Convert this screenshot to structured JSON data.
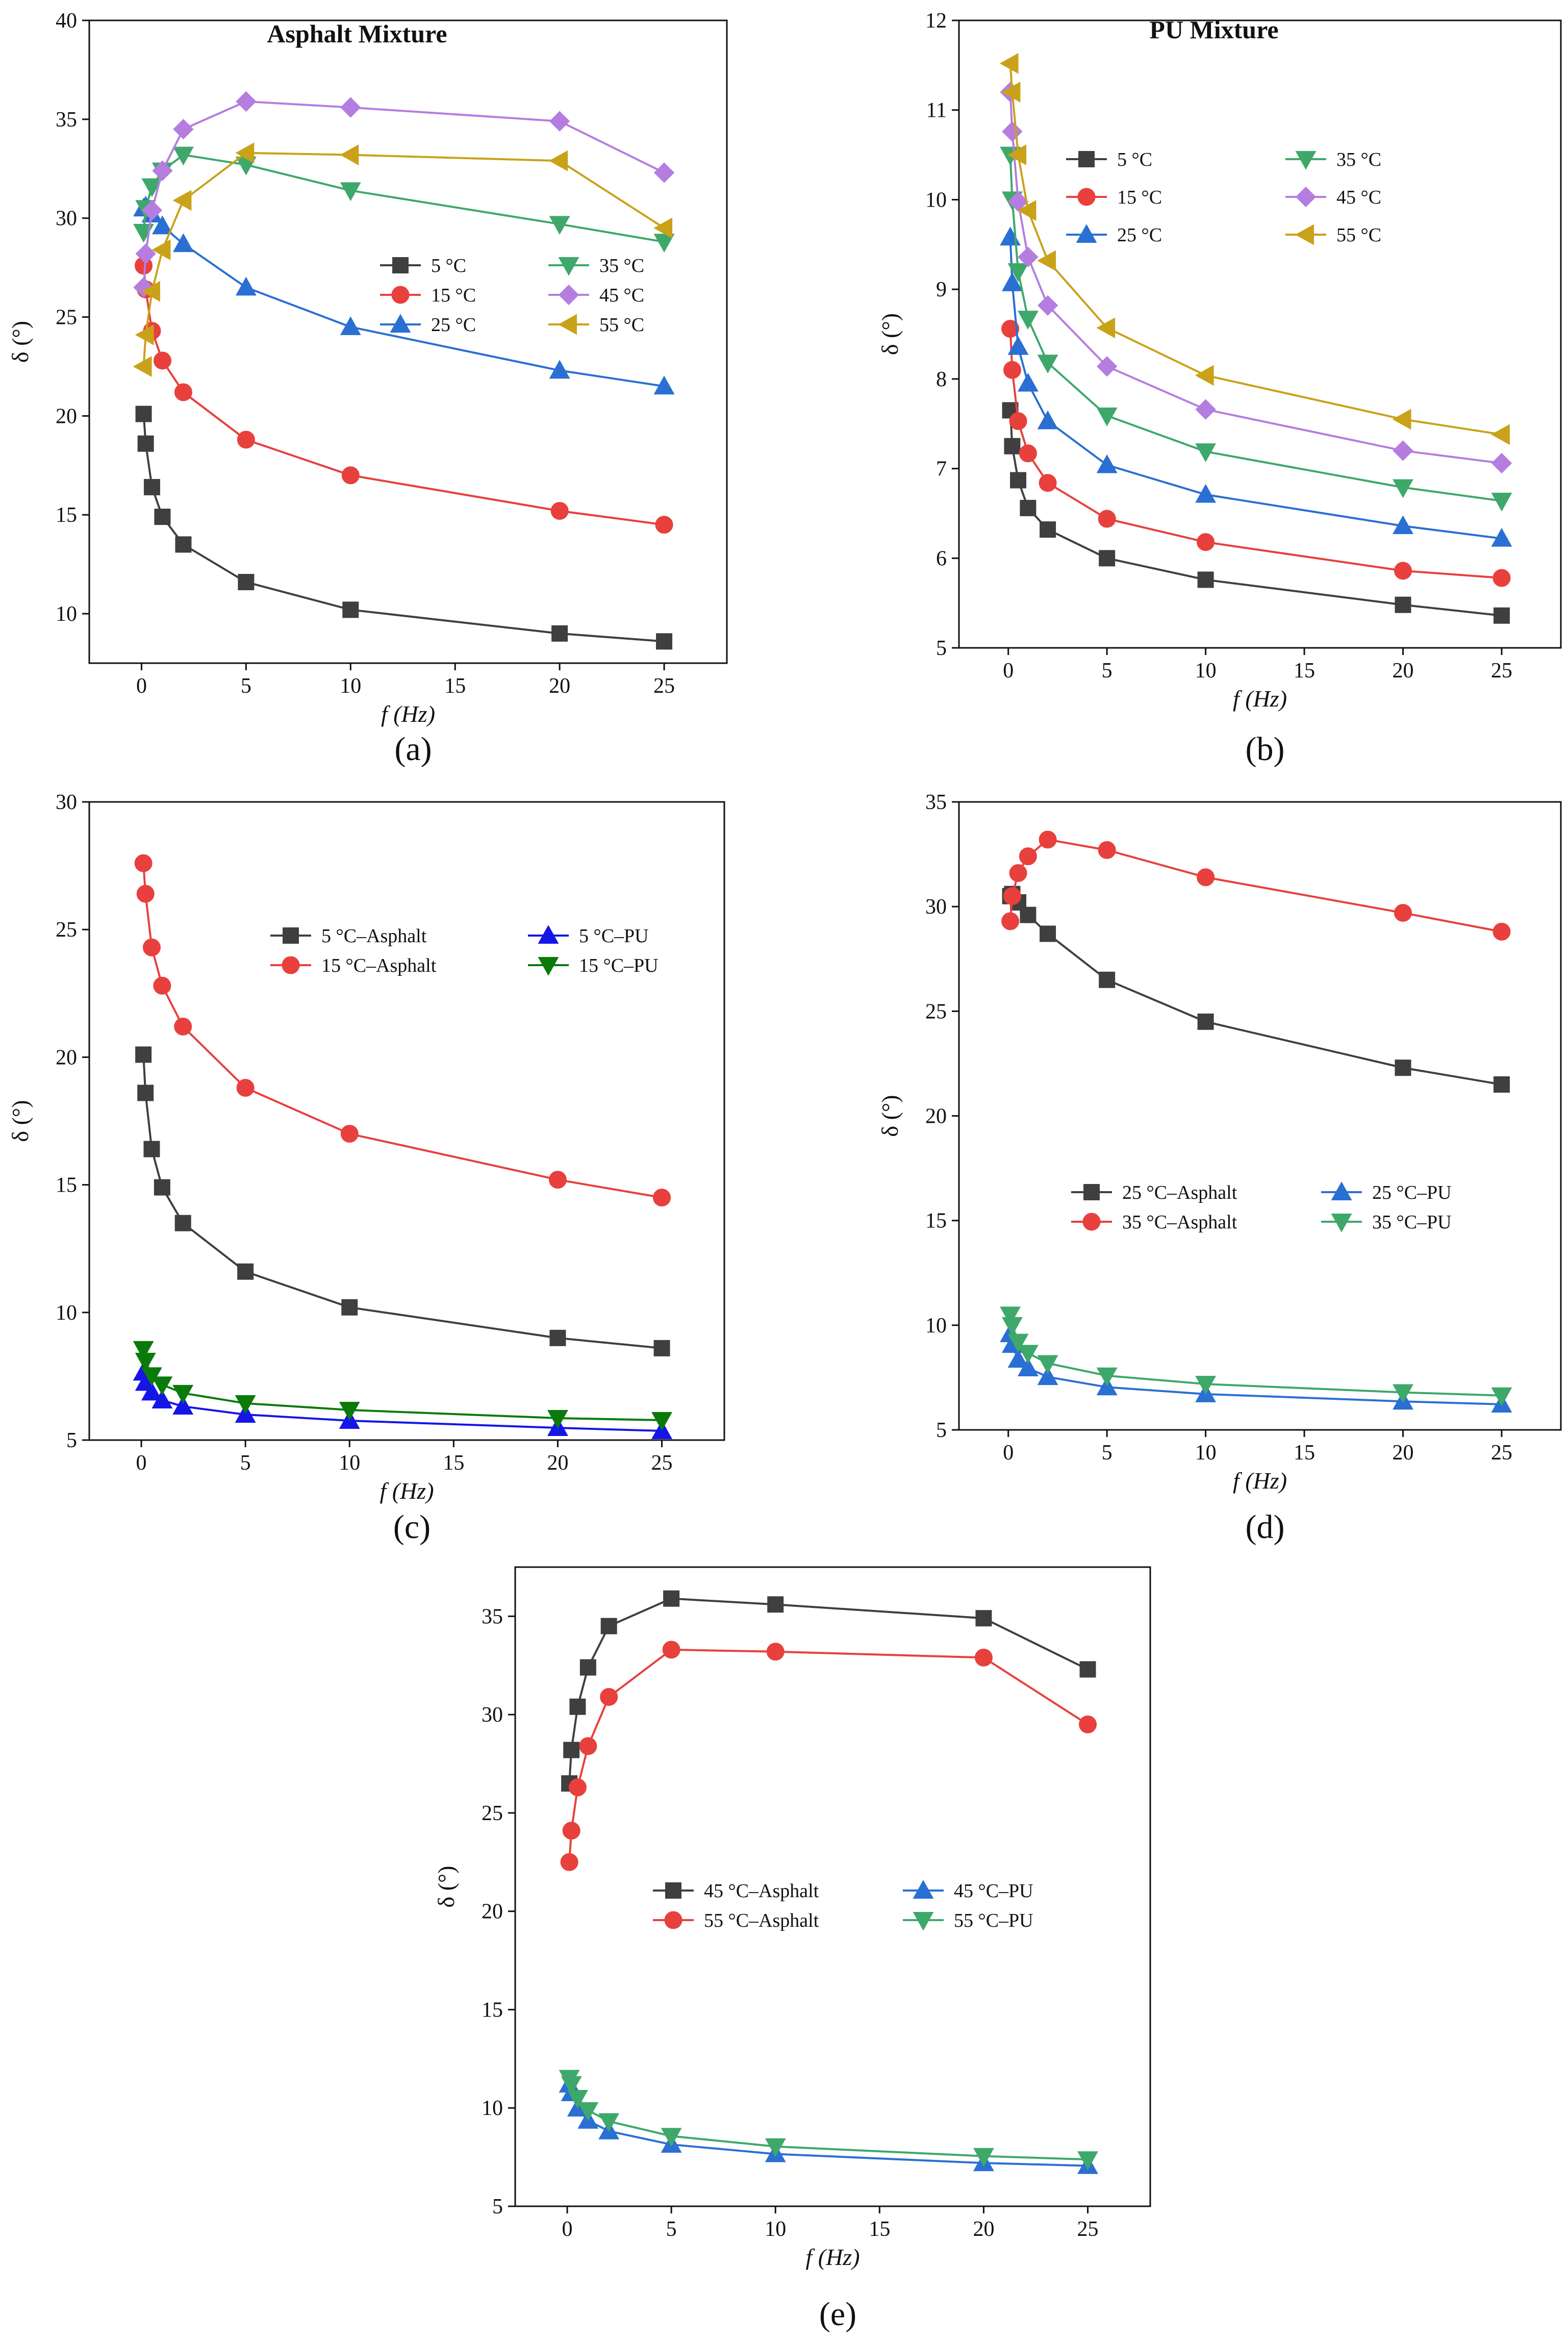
{
  "figure": {
    "captions": [
      "(a)",
      "(b)",
      "(c)",
      "(d)",
      "(e)"
    ]
  },
  "chart_data": [
    {
      "id": "a",
      "type": "line",
      "title": "Asphalt Mixture",
      "caption": "(a)",
      "xlabel": "f (Hz)",
      "ylabel": "δ (°)",
      "xlim": [
        -2.5,
        28
      ],
      "ylim": [
        7.5,
        40
      ],
      "xticks": [
        0,
        5,
        10,
        15,
        20,
        25
      ],
      "yticks": [
        10,
        15,
        20,
        25,
        30,
        35,
        40
      ],
      "legend_position": "center-right",
      "legend_columns": 2,
      "series": [
        {
          "name": "5 °C",
          "color": "#3f3f3f",
          "marker": "square",
          "x": [
            0.1,
            0.2,
            0.5,
            1,
            2,
            5,
            10,
            20,
            25
          ],
          "y": [
            20.1,
            18.6,
            16.4,
            14.9,
            13.5,
            11.6,
            10.2,
            9.0,
            8.6
          ]
        },
        {
          "name": "15 °C",
          "color": "#e8403d",
          "marker": "circle",
          "x": [
            0.1,
            0.2,
            0.5,
            1,
            2,
            5,
            10,
            20,
            25
          ],
          "y": [
            27.6,
            26.4,
            24.3,
            22.8,
            21.2,
            18.8,
            17.0,
            15.2,
            14.5
          ]
        },
        {
          "name": "25 °C",
          "color": "#2a6fd3",
          "marker": "triangle-up",
          "x": [
            0.1,
            0.2,
            0.5,
            1,
            2,
            5,
            10,
            20,
            25
          ],
          "y": [
            30.5,
            30.6,
            30.2,
            29.6,
            28.7,
            26.5,
            24.5,
            22.3,
            21.5
          ]
        },
        {
          "name": "35 °C",
          "color": "#3ea86a",
          "marker": "triangle-down",
          "x": [
            0.1,
            0.2,
            0.5,
            1,
            2,
            5,
            10,
            20,
            25
          ],
          "y": [
            29.3,
            30.5,
            31.6,
            32.4,
            33.2,
            32.7,
            31.4,
            29.7,
            28.8
          ]
        },
        {
          "name": "45 °C",
          "color": "#b57de0",
          "marker": "diamond",
          "x": [
            0.1,
            0.2,
            0.5,
            1,
            2,
            5,
            10,
            20,
            25
          ],
          "y": [
            26.5,
            28.2,
            30.4,
            32.4,
            34.5,
            35.9,
            35.6,
            34.9,
            32.3
          ]
        },
        {
          "name": "55 °C",
          "color": "#c9a21a",
          "marker": "triangle-left",
          "x": [
            0.1,
            0.2,
            0.5,
            1,
            2,
            5,
            10,
            20,
            25
          ],
          "y": [
            22.5,
            24.1,
            26.3,
            28.4,
            30.9,
            33.3,
            33.2,
            32.9,
            29.5
          ]
        }
      ]
    },
    {
      "id": "b",
      "type": "line",
      "title": "PU Mixture",
      "caption": "(b)",
      "xlabel": "f (Hz)",
      "ylabel": "δ (°)",
      "xlim": [
        -2.5,
        28
      ],
      "ylim": [
        5,
        12
      ],
      "xticks": [
        0,
        5,
        10,
        15,
        20,
        25
      ],
      "yticks": [
        5,
        6,
        7,
        8,
        9,
        10,
        11,
        12
      ],
      "legend_position": "top-right",
      "legend_columns": 2,
      "series": [
        {
          "name": "5 °C",
          "color": "#3f3f3f",
          "marker": "square",
          "x": [
            0.1,
            0.2,
            0.5,
            1,
            2,
            5,
            10,
            20,
            25
          ],
          "y": [
            7.65,
            7.25,
            6.87,
            6.56,
            6.32,
            6.0,
            5.76,
            5.48,
            5.36
          ]
        },
        {
          "name": "15 °C",
          "color": "#e8403d",
          "marker": "circle",
          "x": [
            0.1,
            0.2,
            0.5,
            1,
            2,
            5,
            10,
            20,
            25
          ],
          "y": [
            8.56,
            8.1,
            7.53,
            7.17,
            6.84,
            6.44,
            6.18,
            5.86,
            5.78
          ]
        },
        {
          "name": "25 °C",
          "color": "#2a6fd3",
          "marker": "triangle-up",
          "x": [
            0.1,
            0.2,
            0.5,
            1,
            2,
            5,
            10,
            20,
            25
          ],
          "y": [
            9.58,
            9.07,
            8.36,
            7.95,
            7.53,
            7.04,
            6.71,
            6.36,
            6.22
          ]
        },
        {
          "name": "35 °C",
          "color": "#3ea86a",
          "marker": "triangle-down",
          "x": [
            0.1,
            0.2,
            0.5,
            1,
            2,
            5,
            10,
            20,
            25
          ],
          "y": [
            10.5,
            10.0,
            9.2,
            8.67,
            8.18,
            7.59,
            7.19,
            6.79,
            6.64
          ]
        },
        {
          "name": "45 °C",
          "color": "#b57de0",
          "marker": "diamond",
          "x": [
            0.1,
            0.2,
            0.5,
            1,
            2,
            5,
            10,
            20,
            25
          ],
          "y": [
            11.2,
            10.76,
            9.98,
            9.36,
            8.82,
            8.14,
            7.66,
            7.2,
            7.06
          ]
        },
        {
          "name": "55 °C",
          "color": "#c9a21a",
          "marker": "triangle-left",
          "x": [
            0.1,
            0.2,
            0.5,
            1,
            2,
            5,
            10,
            20,
            25
          ],
          "y": [
            11.52,
            11.2,
            10.5,
            9.88,
            9.32,
            8.57,
            8.04,
            7.55,
            7.38
          ]
        }
      ]
    },
    {
      "id": "c",
      "type": "line",
      "title": "",
      "caption": "(c)",
      "xlabel": "f (Hz)",
      "ylabel": "δ (°)",
      "xlim": [
        -2.5,
        28
      ],
      "ylim": [
        5,
        30
      ],
      "xticks": [
        0,
        5,
        10,
        15,
        20,
        25
      ],
      "yticks": [
        5,
        10,
        15,
        20,
        25,
        30
      ],
      "legend_position": "top-center",
      "legend_columns": 2,
      "series": [
        {
          "name": "5 °C–Asphalt",
          "color": "#3f3f3f",
          "marker": "square",
          "x": [
            0.1,
            0.2,
            0.5,
            1,
            2,
            5,
            10,
            20,
            25
          ],
          "y": [
            20.1,
            18.6,
            16.4,
            14.9,
            13.5,
            11.6,
            10.2,
            9.0,
            8.6
          ]
        },
        {
          "name": "15 °C–Asphalt",
          "color": "#e8403d",
          "marker": "circle",
          "x": [
            0.1,
            0.2,
            0.5,
            1,
            2,
            5,
            10,
            20,
            25
          ],
          "y": [
            27.6,
            26.4,
            24.3,
            22.8,
            21.2,
            18.8,
            17.0,
            15.2,
            14.5
          ]
        },
        {
          "name": "5 °C–PU",
          "color": "#1515e8",
          "marker": "triangle-up",
          "x": [
            0.1,
            0.2,
            0.5,
            1,
            2,
            5,
            10,
            20,
            25
          ],
          "y": [
            7.65,
            7.25,
            6.87,
            6.56,
            6.32,
            6.0,
            5.76,
            5.48,
            5.36
          ]
        },
        {
          "name": "15 °C–PU",
          "color": "#0a7a0a",
          "marker": "triangle-down",
          "x": [
            0.1,
            0.2,
            0.5,
            1,
            2,
            5,
            10,
            20,
            25
          ],
          "y": [
            8.56,
            8.1,
            7.53,
            7.17,
            6.84,
            6.44,
            6.18,
            5.86,
            5.78
          ]
        }
      ]
    },
    {
      "id": "d",
      "type": "line",
      "title": "",
      "caption": "(d)",
      "xlabel": "f (Hz)",
      "ylabel": "δ (°)",
      "xlim": [
        -2.5,
        28
      ],
      "ylim": [
        5,
        35
      ],
      "xticks": [
        0,
        5,
        10,
        15,
        20,
        25
      ],
      "yticks": [
        5,
        10,
        15,
        20,
        25,
        30,
        35
      ],
      "legend_position": "center",
      "legend_columns": 2,
      "series": [
        {
          "name": "25 °C–Asphalt",
          "color": "#3f3f3f",
          "marker": "square",
          "x": [
            0.1,
            0.2,
            0.5,
            1,
            2,
            5,
            10,
            20,
            25
          ],
          "y": [
            30.5,
            30.6,
            30.2,
            29.6,
            28.7,
            26.5,
            24.5,
            22.3,
            21.5
          ]
        },
        {
          "name": "35 °C–Asphalt",
          "color": "#e8403d",
          "marker": "circle",
          "x": [
            0.1,
            0.2,
            0.5,
            1,
            2,
            5,
            10,
            20,
            25
          ],
          "y": [
            29.3,
            30.5,
            31.6,
            32.4,
            33.2,
            32.7,
            31.4,
            29.7,
            28.8
          ]
        },
        {
          "name": "25 °C–PU",
          "color": "#2a6fd3",
          "marker": "triangle-up",
          "x": [
            0.1,
            0.2,
            0.5,
            1,
            2,
            5,
            10,
            20,
            25
          ],
          "y": [
            9.58,
            9.07,
            8.36,
            7.95,
            7.53,
            7.04,
            6.71,
            6.36,
            6.22
          ]
        },
        {
          "name": "35 °C–PU",
          "color": "#3ea86a",
          "marker": "triangle-down",
          "x": [
            0.1,
            0.2,
            0.5,
            1,
            2,
            5,
            10,
            20,
            25
          ],
          "y": [
            10.5,
            10.0,
            9.2,
            8.67,
            8.18,
            7.59,
            7.19,
            6.79,
            6.64
          ]
        }
      ]
    },
    {
      "id": "e",
      "type": "line",
      "title": "",
      "caption": "(e)",
      "xlabel": "f (Hz)",
      "ylabel": "δ (°)",
      "xlim": [
        -2.5,
        28
      ],
      "ylim": [
        5,
        37.5
      ],
      "xticks": [
        0,
        5,
        10,
        15,
        20,
        25
      ],
      "yticks": [
        5,
        10,
        15,
        20,
        25,
        30,
        35
      ],
      "legend_position": "center",
      "legend_columns": 2,
      "series": [
        {
          "name": "45 °C–Asphalt",
          "color": "#3f3f3f",
          "marker": "square",
          "x": [
            0.1,
            0.2,
            0.5,
            1,
            2,
            5,
            10,
            20,
            25
          ],
          "y": [
            26.5,
            28.2,
            30.4,
            32.4,
            34.5,
            35.9,
            35.6,
            34.9,
            32.3
          ]
        },
        {
          "name": "55 °C–Asphalt",
          "color": "#e8403d",
          "marker": "circle",
          "x": [
            0.1,
            0.2,
            0.5,
            1,
            2,
            5,
            10,
            20,
            25
          ],
          "y": [
            22.5,
            24.1,
            26.3,
            28.4,
            30.9,
            33.3,
            33.2,
            32.9,
            29.5
          ]
        },
        {
          "name": "45 °C–PU",
          "color": "#2a6fd3",
          "marker": "triangle-up",
          "x": [
            0.1,
            0.2,
            0.5,
            1,
            2,
            5,
            10,
            20,
            25
          ],
          "y": [
            11.2,
            10.76,
            9.98,
            9.36,
            8.82,
            8.14,
            7.66,
            7.2,
            7.06
          ]
        },
        {
          "name": "55 °C–PU",
          "color": "#3ea86a",
          "marker": "triangle-down",
          "x": [
            0.1,
            0.2,
            0.5,
            1,
            2,
            5,
            10,
            20,
            25
          ],
          "y": [
            11.52,
            11.2,
            10.5,
            9.88,
            9.32,
            8.57,
            8.04,
            7.55,
            7.38
          ]
        }
      ]
    }
  ]
}
